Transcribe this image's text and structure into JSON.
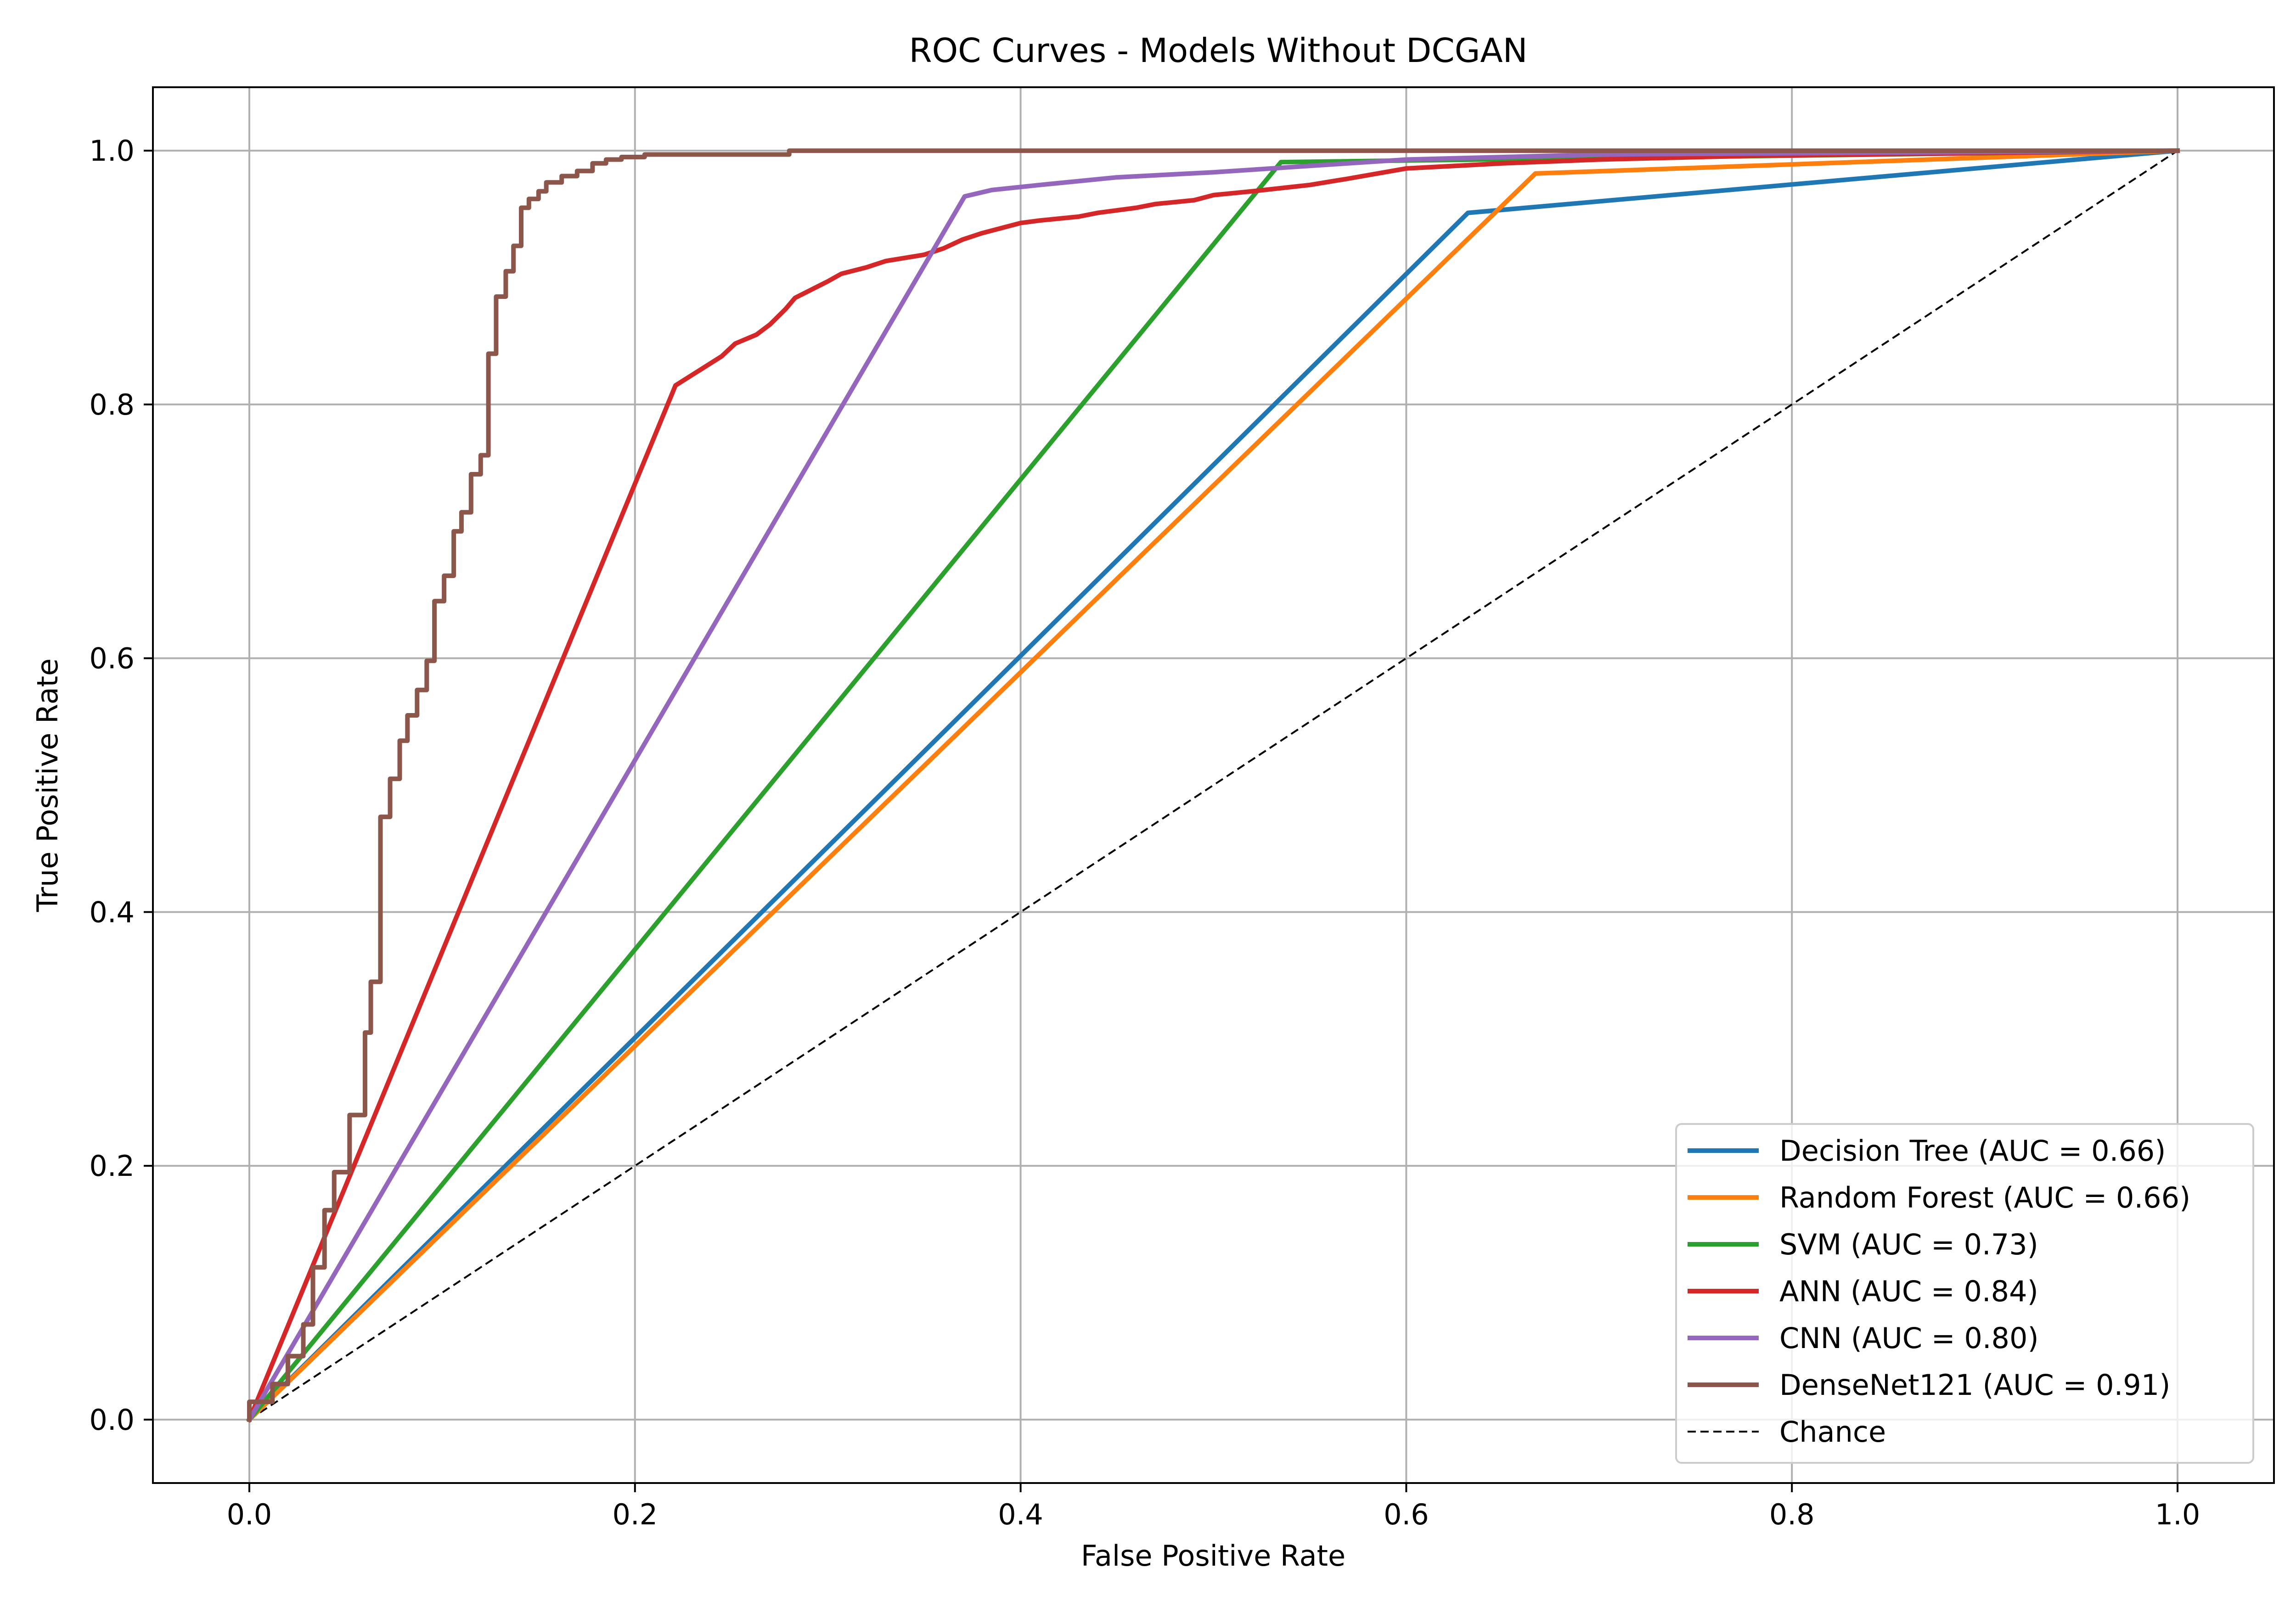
{
  "chart_data": {
    "type": "line",
    "title": "ROC Curves - Models Without DCGAN",
    "xlabel": "False Positive Rate",
    "ylabel": "True Positive Rate",
    "xlim": [
      -0.05,
      1.05
    ],
    "ylim": [
      -0.05,
      1.05
    ],
    "xticks": [
      0.0,
      0.2,
      0.4,
      0.6,
      0.8,
      1.0
    ],
    "yticks": [
      0.0,
      0.2,
      0.4,
      0.6,
      0.8,
      1.0
    ],
    "xtick_labels": [
      "0.0",
      "0.2",
      "0.4",
      "0.6",
      "0.8",
      "1.0"
    ],
    "ytick_labels": [
      "0.0",
      "0.2",
      "0.4",
      "0.6",
      "0.8",
      "1.0"
    ],
    "grid": true,
    "legend_position": "lower-right",
    "series": [
      {
        "name": "Decision Tree (AUC = 0.66)",
        "color": "#1f77b4",
        "style": "solid",
        "x": [
          0.0,
          0.632,
          1.0
        ],
        "y": [
          0.0,
          0.951,
          1.0
        ]
      },
      {
        "name": "Random Forest (AUC = 0.66)",
        "color": "#ff7f0e",
        "style": "solid",
        "x": [
          0.0,
          0.667,
          1.0
        ],
        "y": [
          0.0,
          0.982,
          1.0
        ]
      },
      {
        "name": "SVM (AUC = 0.73)",
        "color": "#2ca02c",
        "style": "solid",
        "x": [
          0.0,
          0.535,
          1.0
        ],
        "y": [
          0.0,
          0.991,
          1.0
        ]
      },
      {
        "name": "ANN (AUC = 0.84)",
        "color": "#d62728",
        "style": "solid",
        "x": [
          0.0,
          0.221,
          0.245,
          0.252,
          0.263,
          0.27,
          0.278,
          0.283,
          0.3,
          0.307,
          0.32,
          0.33,
          0.35,
          0.36,
          0.37,
          0.38,
          0.4,
          0.41,
          0.43,
          0.44,
          0.46,
          0.47,
          0.49,
          0.5,
          0.52,
          0.55,
          0.57,
          0.6,
          0.65,
          0.7,
          0.78,
          1.0
        ],
        "y": [
          0.0,
          0.815,
          0.838,
          0.848,
          0.855,
          0.863,
          0.875,
          0.884,
          0.897,
          0.903,
          0.908,
          0.913,
          0.918,
          0.923,
          0.93,
          0.935,
          0.943,
          0.945,
          0.948,
          0.951,
          0.955,
          0.958,
          0.961,
          0.965,
          0.968,
          0.973,
          0.978,
          0.986,
          0.99,
          0.993,
          0.996,
          1.0
        ]
      },
      {
        "name": "CNN (AUC = 0.80)",
        "color": "#9467bd",
        "style": "solid",
        "x": [
          0.0,
          0.371,
          0.385,
          0.41,
          0.43,
          0.45,
          0.5,
          0.55,
          0.6,
          0.7,
          1.0
        ],
        "y": [
          0.0,
          0.964,
          0.969,
          0.973,
          0.976,
          0.979,
          0.983,
          0.988,
          0.993,
          0.997,
          1.0
        ]
      },
      {
        "name": "DenseNet121 (AUC = 0.91)",
        "color": "#8c564b",
        "style": "solid",
        "x": [
          0.0,
          0.0,
          0.012,
          0.012,
          0.02,
          0.02,
          0.028,
          0.028,
          0.033,
          0.033,
          0.039,
          0.039,
          0.044,
          0.044,
          0.052,
          0.052,
          0.06,
          0.06,
          0.063,
          0.063,
          0.068,
          0.068,
          0.073,
          0.073,
          0.078,
          0.078,
          0.082,
          0.082,
          0.087,
          0.087,
          0.092,
          0.092,
          0.096,
          0.096,
          0.101,
          0.101,
          0.106,
          0.106,
          0.11,
          0.11,
          0.115,
          0.115,
          0.12,
          0.12,
          0.124,
          0.124,
          0.128,
          0.128,
          0.133,
          0.133,
          0.137,
          0.137,
          0.141,
          0.141,
          0.145,
          0.145,
          0.15,
          0.15,
          0.154,
          0.154,
          0.162,
          0.162,
          0.17,
          0.17,
          0.178,
          0.178,
          0.185,
          0.185,
          0.193,
          0.193,
          0.205,
          0.205,
          0.28,
          0.28,
          0.325,
          0.325,
          0.34,
          0.34,
          1.0
        ],
        "y": [
          0.0,
          0.014,
          0.014,
          0.028,
          0.028,
          0.05,
          0.05,
          0.075,
          0.075,
          0.12,
          0.12,
          0.165,
          0.165,
          0.195,
          0.195,
          0.24,
          0.24,
          0.305,
          0.305,
          0.345,
          0.345,
          0.475,
          0.475,
          0.505,
          0.505,
          0.535,
          0.535,
          0.555,
          0.555,
          0.575,
          0.575,
          0.598,
          0.598,
          0.645,
          0.645,
          0.665,
          0.665,
          0.7,
          0.7,
          0.715,
          0.715,
          0.745,
          0.745,
          0.76,
          0.76,
          0.84,
          0.84,
          0.885,
          0.885,
          0.905,
          0.905,
          0.925,
          0.925,
          0.955,
          0.955,
          0.962,
          0.962,
          0.968,
          0.968,
          0.975,
          0.975,
          0.98,
          0.98,
          0.984,
          0.984,
          0.99,
          0.99,
          0.993,
          0.993,
          0.995,
          0.995,
          0.997,
          0.997,
          1.0,
          1.0,
          1.0,
          1.0,
          1.0,
          1.0
        ]
      },
      {
        "name": "Chance",
        "color": "#000000",
        "style": "dashed",
        "x": [
          0.0,
          1.0
        ],
        "y": [
          0.0,
          1.0
        ]
      }
    ]
  }
}
